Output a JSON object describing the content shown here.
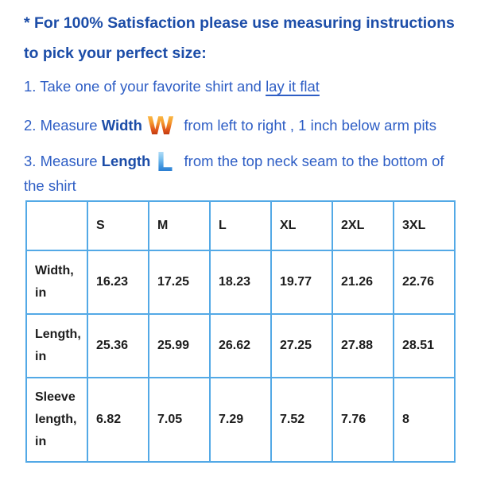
{
  "heading": {
    "full_text": "* For 100% Satisfaction please use measuring instructions to pick your perfect size:",
    "lines": [
      "* For 100% Satisfaction please use measuring instructions",
      "to pick your perfect size:"
    ]
  },
  "steps": {
    "step1": {
      "prefix": "1. Take one of your favorite shirt and ",
      "underlined": "lay it flat"
    },
    "step2": {
      "prefix": "2. Measure ",
      "keyword": "Width",
      "icon_letter": "W",
      "suffix": " from left to right , 1 inch below arm pits"
    },
    "step3": {
      "prefix": "3. Measure ",
      "keyword": "Length",
      "icon_letter": "L",
      "suffix": " from the top neck seam to the bottom of the shirt"
    }
  },
  "size_table": {
    "header": [
      "",
      "S",
      "M",
      "L",
      "XL",
      "2XL",
      "3XL"
    ],
    "rows": [
      {
        "label": "Width, in",
        "values": [
          "16.23",
          "17.25",
          "18.23",
          "19.77",
          "21.26",
          "22.76"
        ]
      },
      {
        "label": "Length, in",
        "values": [
          "25.36",
          "25.99",
          "26.62",
          "27.25",
          "27.88",
          "28.51"
        ]
      },
      {
        "label": "Sleeve length, in",
        "values": [
          "6.82",
          "7.05",
          "7.29",
          "7.52",
          "7.76",
          "8"
        ]
      }
    ]
  },
  "colors": {
    "heading_text": "#1c4da8",
    "body_text": "#2e5ec5",
    "table_border": "#53a9e6",
    "table_text": "#1c1c1c",
    "width_icon_gradient_top": "#fcc14d",
    "width_icon_gradient_bottom": "#a32104",
    "length_icon_gradient_top": "#bce1f8",
    "length_icon_gradient_bottom": "#1e6fc8"
  }
}
